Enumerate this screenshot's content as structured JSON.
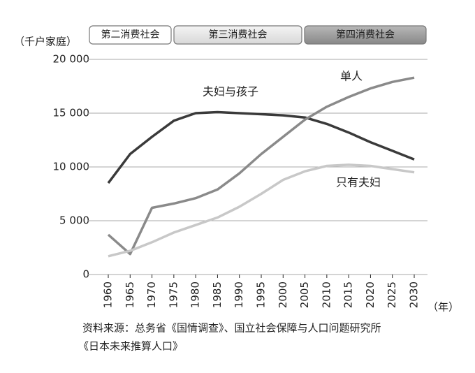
{
  "chart_data": {
    "type": "line",
    "y_label": "（千户家庭）",
    "x_label": "（年）",
    "eras": [
      "第二消费社会",
      "第三消费社会",
      "第四消费社会"
    ],
    "x": [
      1960,
      1965,
      1970,
      1975,
      1980,
      1985,
      1990,
      1995,
      2000,
      2005,
      2010,
      2015,
      2020,
      2025,
      2030
    ],
    "xlim": [
      1960,
      2030
    ],
    "xticks": [
      1960,
      1965,
      1970,
      1975,
      1980,
      1985,
      1990,
      1995,
      2000,
      2005,
      2010,
      2015,
      2020,
      2025,
      2030
    ],
    "ylim": [
      0,
      20000
    ],
    "yticks": [
      {
        "value": 0,
        "label": "0"
      },
      {
        "value": 5000,
        "label": "5 000"
      },
      {
        "value": 10000,
        "label": "10 000"
      },
      {
        "value": 15000,
        "label": "15 000"
      },
      {
        "value": 20000,
        "label": "20 000"
      }
    ],
    "grid": true,
    "series": [
      {
        "name": "夫妇与孩子",
        "color": "#3a3a3a",
        "values": [
          8500,
          11200,
          12800,
          14300,
          15000,
          15100,
          15000,
          14900,
          14800,
          14600,
          14000,
          13200,
          12300,
          11500,
          10700
        ]
      },
      {
        "name": "单人",
        "color": "#8a8a8a",
        "values": [
          3700,
          1900,
          6200,
          6600,
          7100,
          7900,
          9400,
          11200,
          12800,
          14400,
          15600,
          16500,
          17300,
          17900,
          18300
        ]
      },
      {
        "name": "只有夫妇",
        "color": "#c8c8c8",
        "values": [
          1700,
          2200,
          3000,
          3900,
          4600,
          5300,
          6300,
          7500,
          8800,
          9600,
          10100,
          10200,
          10100,
          9800,
          9500
        ]
      }
    ],
    "source": [
      "资料来源：总务省《国情调查》、国立社会保障与人口问题研究所",
      "《日本未来推算人口》"
    ]
  }
}
